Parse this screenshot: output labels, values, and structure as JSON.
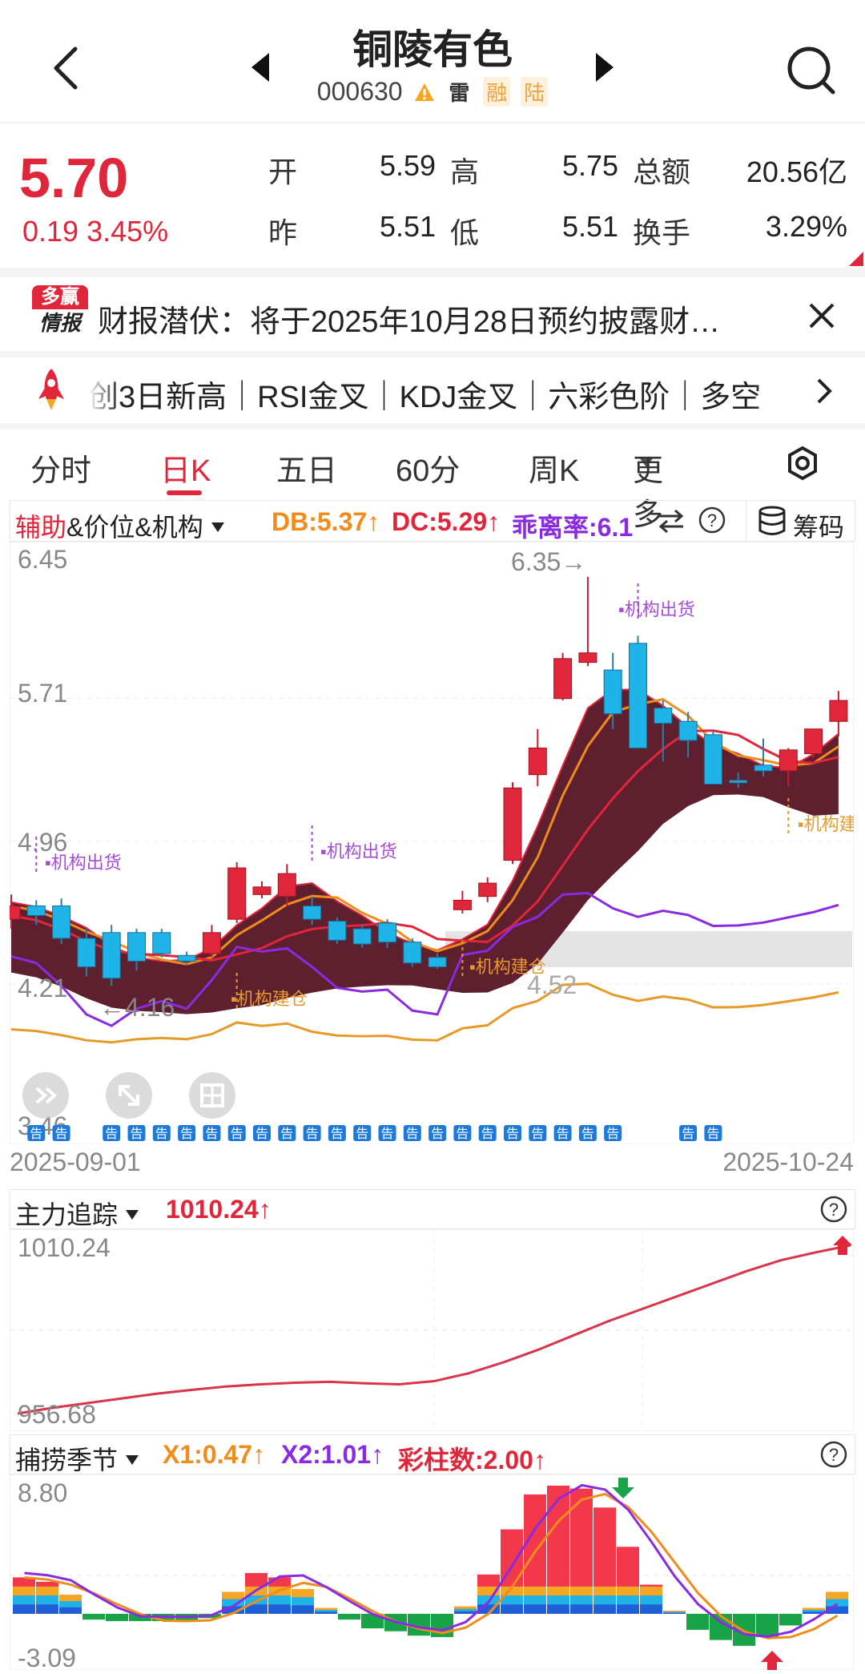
{
  "header": {
    "title": "铜陵有色",
    "code": "000630",
    "tags": [
      "雷",
      "融",
      "陆"
    ]
  },
  "quote": {
    "price": "5.70",
    "change": "0.19",
    "change_pct": "3.45%",
    "open_label": "开",
    "open": "5.59",
    "high_label": "高",
    "high": "5.75",
    "amount_label": "总额",
    "amount": "20.56亿",
    "prev_label": "昨",
    "prev": "5.51",
    "low_label": "低",
    "low": "5.51",
    "turnover_label": "换手",
    "turnover": "3.29%"
  },
  "news": {
    "logo_top": "多赢",
    "logo_bottom": "情报",
    "text": "财报潜伏：将于2025年10月28日预约披露财…"
  },
  "signals": {
    "text": "创3日新高｜RSI金叉｜KDJ金叉｜六彩色阶｜多空"
  },
  "tabs": [
    {
      "label": "分时"
    },
    {
      "label": "日K"
    },
    {
      "label": "五日"
    },
    {
      "label": "60分"
    },
    {
      "label": "周K"
    },
    {
      "label": "更多"
    }
  ],
  "main_indicator": {
    "name_a": "辅助",
    "name_b": "&价位&机构",
    "db": "DB:5.37↑",
    "dc": "DC:5.29↑",
    "bias": "乖离率:6.1",
    "chip_label": "筹码"
  },
  "kline": {
    "y_labels": [
      "6.45",
      "5.71",
      "4.96",
      "4.21",
      "3.46"
    ],
    "high_mark": "6.35→",
    "low_mark": "←4.16",
    "level_mark": "4.52",
    "date_start": "2025-09-01",
    "date_end": "2025-10-24",
    "annotations": {
      "sell": "机构出货",
      "buy": "机构建仓",
      "buy_cut": "机构建"
    },
    "notice_glyph": "告",
    "colors": {
      "up": "#e0263a",
      "down": "#1fb4e8",
      "band": "#5e1f2e",
      "ma_orange": "#f08c1c",
      "ma_red": "#e0263a",
      "purple": "#8a2be2"
    }
  },
  "chart_data": [
    {
      "type": "candlestick",
      "title": "",
      "ylim": [
        3.46,
        6.45
      ],
      "y_ticks": [
        6.45,
        5.71,
        4.96,
        4.21,
        3.46
      ],
      "x_range": [
        "2025-09-01",
        "2025-10-24"
      ],
      "ohlc": [
        [
          4.55,
          4.68,
          4.5,
          4.62
        ],
        [
          4.62,
          4.65,
          4.52,
          4.57
        ],
        [
          4.62,
          4.66,
          4.42,
          4.45
        ],
        [
          4.45,
          4.5,
          4.25,
          4.3
        ],
        [
          4.48,
          4.52,
          4.2,
          4.24
        ],
        [
          4.48,
          4.5,
          4.28,
          4.33
        ],
        [
          4.48,
          4.5,
          4.35,
          4.37
        ],
        [
          4.36,
          4.38,
          4.31,
          4.33
        ],
        [
          4.37,
          4.52,
          4.35,
          4.48
        ],
        [
          4.55,
          4.85,
          4.53,
          4.82
        ],
        [
          4.68,
          4.75,
          4.66,
          4.72
        ],
        [
          4.67,
          4.84,
          4.62,
          4.79
        ],
        [
          4.62,
          4.67,
          4.52,
          4.55
        ],
        [
          4.54,
          4.56,
          4.42,
          4.44
        ],
        [
          4.5,
          4.52,
          4.4,
          4.42
        ],
        [
          4.53,
          4.55,
          4.4,
          4.43
        ],
        [
          4.43,
          4.45,
          4.3,
          4.32
        ],
        [
          4.35,
          4.37,
          4.29,
          4.3
        ],
        [
          4.6,
          4.7,
          4.58,
          4.65
        ],
        [
          4.67,
          4.77,
          4.64,
          4.74
        ],
        [
          4.86,
          5.27,
          4.84,
          5.24
        ],
        [
          5.31,
          5.55,
          5.25,
          5.45
        ],
        [
          5.71,
          5.95,
          5.7,
          5.92
        ],
        [
          5.9,
          6.35,
          5.88,
          5.95
        ],
        [
          5.86,
          5.95,
          5.55,
          5.63
        ],
        [
          6.0,
          6.04,
          5.45,
          5.45
        ],
        [
          5.66,
          5.7,
          5.38,
          5.58
        ],
        [
          5.59,
          5.64,
          5.4,
          5.49
        ],
        [
          5.52,
          5.54,
          5.26,
          5.26
        ],
        [
          5.28,
          5.32,
          5.24,
          5.27
        ],
        [
          5.36,
          5.5,
          5.3,
          5.33
        ],
        [
          5.33,
          5.45,
          5.25,
          5.44
        ],
        [
          5.42,
          5.55,
          5.4,
          5.55
        ],
        [
          5.59,
          5.75,
          5.51,
          5.7
        ]
      ]
    },
    {
      "type": "line",
      "title": "主力追踪",
      "ylim": [
        956.68,
        1010.24
      ],
      "values": [
        956.68,
        958.5,
        960.0,
        961.5,
        963.0,
        964.2,
        965.3,
        966.0,
        966.5,
        966.8,
        966.3,
        966.0,
        967.0,
        969.5,
        973.0,
        977.0,
        981.5,
        986.0,
        990.0,
        994.0,
        998.0,
        1002.0,
        1005.5,
        1008.0,
        1010.24
      ]
    },
    {
      "type": "bar",
      "title": "捕捞季节",
      "ylim": [
        -3.09,
        8.8
      ],
      "values": [
        2.5,
        2.2,
        1.3,
        -0.4,
        -0.5,
        -0.5,
        -0.5,
        -0.5,
        -0.3,
        1.5,
        2.8,
        2.5,
        1.7,
        0.4,
        -0.4,
        -1.0,
        -1.2,
        -1.5,
        -1.6,
        0.5,
        2.7,
        5.8,
        8.2,
        8.8,
        8.6,
        7.3,
        4.6,
        2.0,
        0.2,
        -1.1,
        -1.8,
        -2.2,
        -1.6,
        -0.8,
        0.4,
        1.5
      ],
      "x1": "X1:0.47↑",
      "x2": "X2:1.01↑",
      "bars": "彩柱数:2.00↑"
    }
  ],
  "zhuli": {
    "name": "主力追踪",
    "value": "1010.24↑",
    "top_label": "1010.24",
    "bottom_label": "956.68"
  },
  "bulao": {
    "name": "捕捞季节",
    "x1": "X1:0.47↑",
    "x2": "X2:1.01↑",
    "bars": "彩柱数:2.00↑",
    "top_label": "8.80",
    "bottom_label": "-3.09"
  }
}
